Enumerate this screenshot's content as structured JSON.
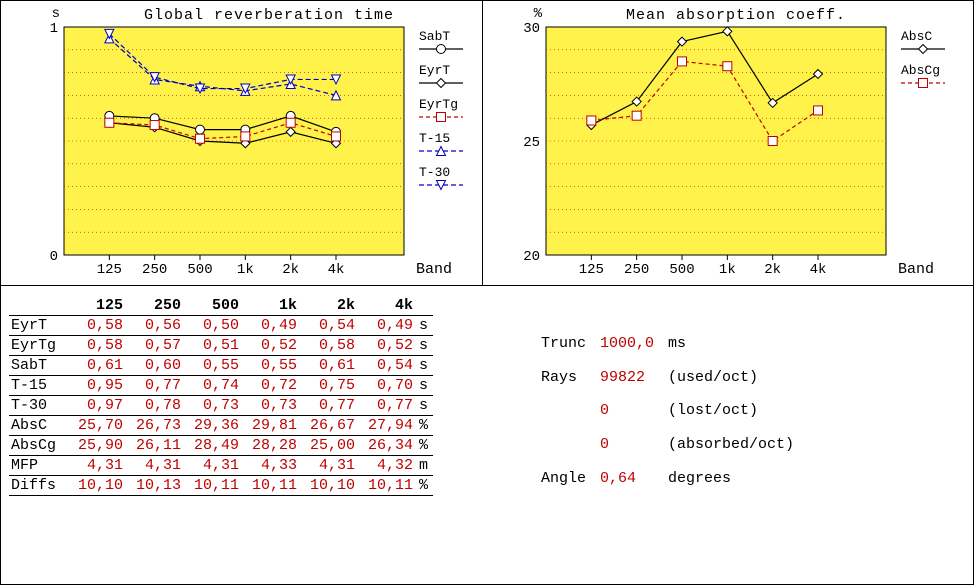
{
  "bands": [
    "125",
    "250",
    "500",
    "1k",
    "2k",
    "4k"
  ],
  "chart1": {
    "title": "Global reverberation time",
    "y_label": "s",
    "x_label": "Band",
    "ylim": [
      0,
      1
    ],
    "yticks": [
      0,
      1
    ],
    "plot_bg": "#fff24a",
    "grid_color": "#c00000",
    "series": [
      {
        "key": "SabT",
        "label": "SabT",
        "color": "#000000",
        "dash": "",
        "marker": "circle",
        "values": [
          0.61,
          0.6,
          0.55,
          0.55,
          0.61,
          0.54
        ]
      },
      {
        "key": "EyrT",
        "label": "EyrT",
        "color": "#000000",
        "dash": "",
        "marker": "diamond",
        "values": [
          0.58,
          0.56,
          0.5,
          0.49,
          0.54,
          0.49
        ]
      },
      {
        "key": "EyrTg",
        "label": "EyrTg",
        "color": "#c00000",
        "dash": "4,3",
        "marker": "square",
        "values": [
          0.58,
          0.57,
          0.51,
          0.52,
          0.58,
          0.52
        ]
      },
      {
        "key": "T-15",
        "label": "T-15",
        "color": "#0000c0",
        "dash": "5,3",
        "marker": "tri-up",
        "values": [
          0.95,
          0.77,
          0.74,
          0.72,
          0.75,
          0.7
        ]
      },
      {
        "key": "T-30",
        "label": "T-30",
        "color": "#0000c0",
        "dash": "5,3",
        "marker": "tri-down",
        "values": [
          0.97,
          0.78,
          0.73,
          0.73,
          0.77,
          0.77
        ]
      }
    ]
  },
  "chart2": {
    "title": "Mean absorption coeff.",
    "y_label": "%",
    "x_label": "Band",
    "ylim": [
      20,
      30
    ],
    "yticks": [
      20,
      25,
      30
    ],
    "plot_bg": "#fff24a",
    "grid_color": "#c00000",
    "series": [
      {
        "key": "AbsC",
        "label": "AbsC",
        "color": "#000000",
        "dash": "",
        "marker": "diamond",
        "values": [
          25.7,
          26.73,
          29.36,
          29.81,
          26.67,
          27.94
        ]
      },
      {
        "key": "AbsCg",
        "label": "AbsCg",
        "color": "#c00000",
        "dash": "4,3",
        "marker": "square",
        "values": [
          25.9,
          26.11,
          28.49,
          28.28,
          25.0,
          26.34
        ]
      }
    ]
  },
  "table": {
    "headers": [
      "125",
      "250",
      "500",
      "1k",
      "2k",
      "4k"
    ],
    "rows": [
      {
        "label": "EyrT",
        "vals": [
          "0,58",
          "0,56",
          "0,50",
          "0,49",
          "0,54",
          "0,49"
        ],
        "unit": "s"
      },
      {
        "label": "EyrTg",
        "vals": [
          "0,58",
          "0,57",
          "0,51",
          "0,52",
          "0,58",
          "0,52"
        ],
        "unit": "s"
      },
      {
        "label": "SabT",
        "vals": [
          "0,61",
          "0,60",
          "0,55",
          "0,55",
          "0,61",
          "0,54"
        ],
        "unit": "s"
      },
      {
        "label": "T-15",
        "vals": [
          "0,95",
          "0,77",
          "0,74",
          "0,72",
          "0,75",
          "0,70"
        ],
        "unit": "s"
      },
      {
        "label": "T-30",
        "vals": [
          "0,97",
          "0,78",
          "0,73",
          "0,73",
          "0,77",
          "0,77"
        ],
        "unit": "s"
      },
      {
        "label": "AbsC",
        "vals": [
          "25,70",
          "26,73",
          "29,36",
          "29,81",
          "26,67",
          "27,94"
        ],
        "unit": "%"
      },
      {
        "label": "AbsCg",
        "vals": [
          "25,90",
          "26,11",
          "28,49",
          "28,28",
          "25,00",
          "26,34"
        ],
        "unit": "%"
      },
      {
        "label": "MFP",
        "vals": [
          "4,31",
          "4,31",
          "4,31",
          "4,33",
          "4,31",
          "4,32"
        ],
        "unit": "m"
      },
      {
        "label": "Diffs",
        "vals": [
          "10,10",
          "10,13",
          "10,11",
          "10,11",
          "10,10",
          "10,11"
        ],
        "unit": "%"
      }
    ]
  },
  "meta": {
    "rows": [
      {
        "k": "Trunc",
        "v": "1000,0",
        "u": "ms"
      },
      {
        "k": "Rays",
        "v": "99822",
        "u": "(used/oct)"
      },
      {
        "k": "",
        "v": "0",
        "u": "(lost/oct)"
      },
      {
        "k": "",
        "v": "0",
        "u": "(absorbed/oct)"
      },
      {
        "k": "Angle",
        "v": "0,64",
        "u": "degrees"
      }
    ]
  }
}
